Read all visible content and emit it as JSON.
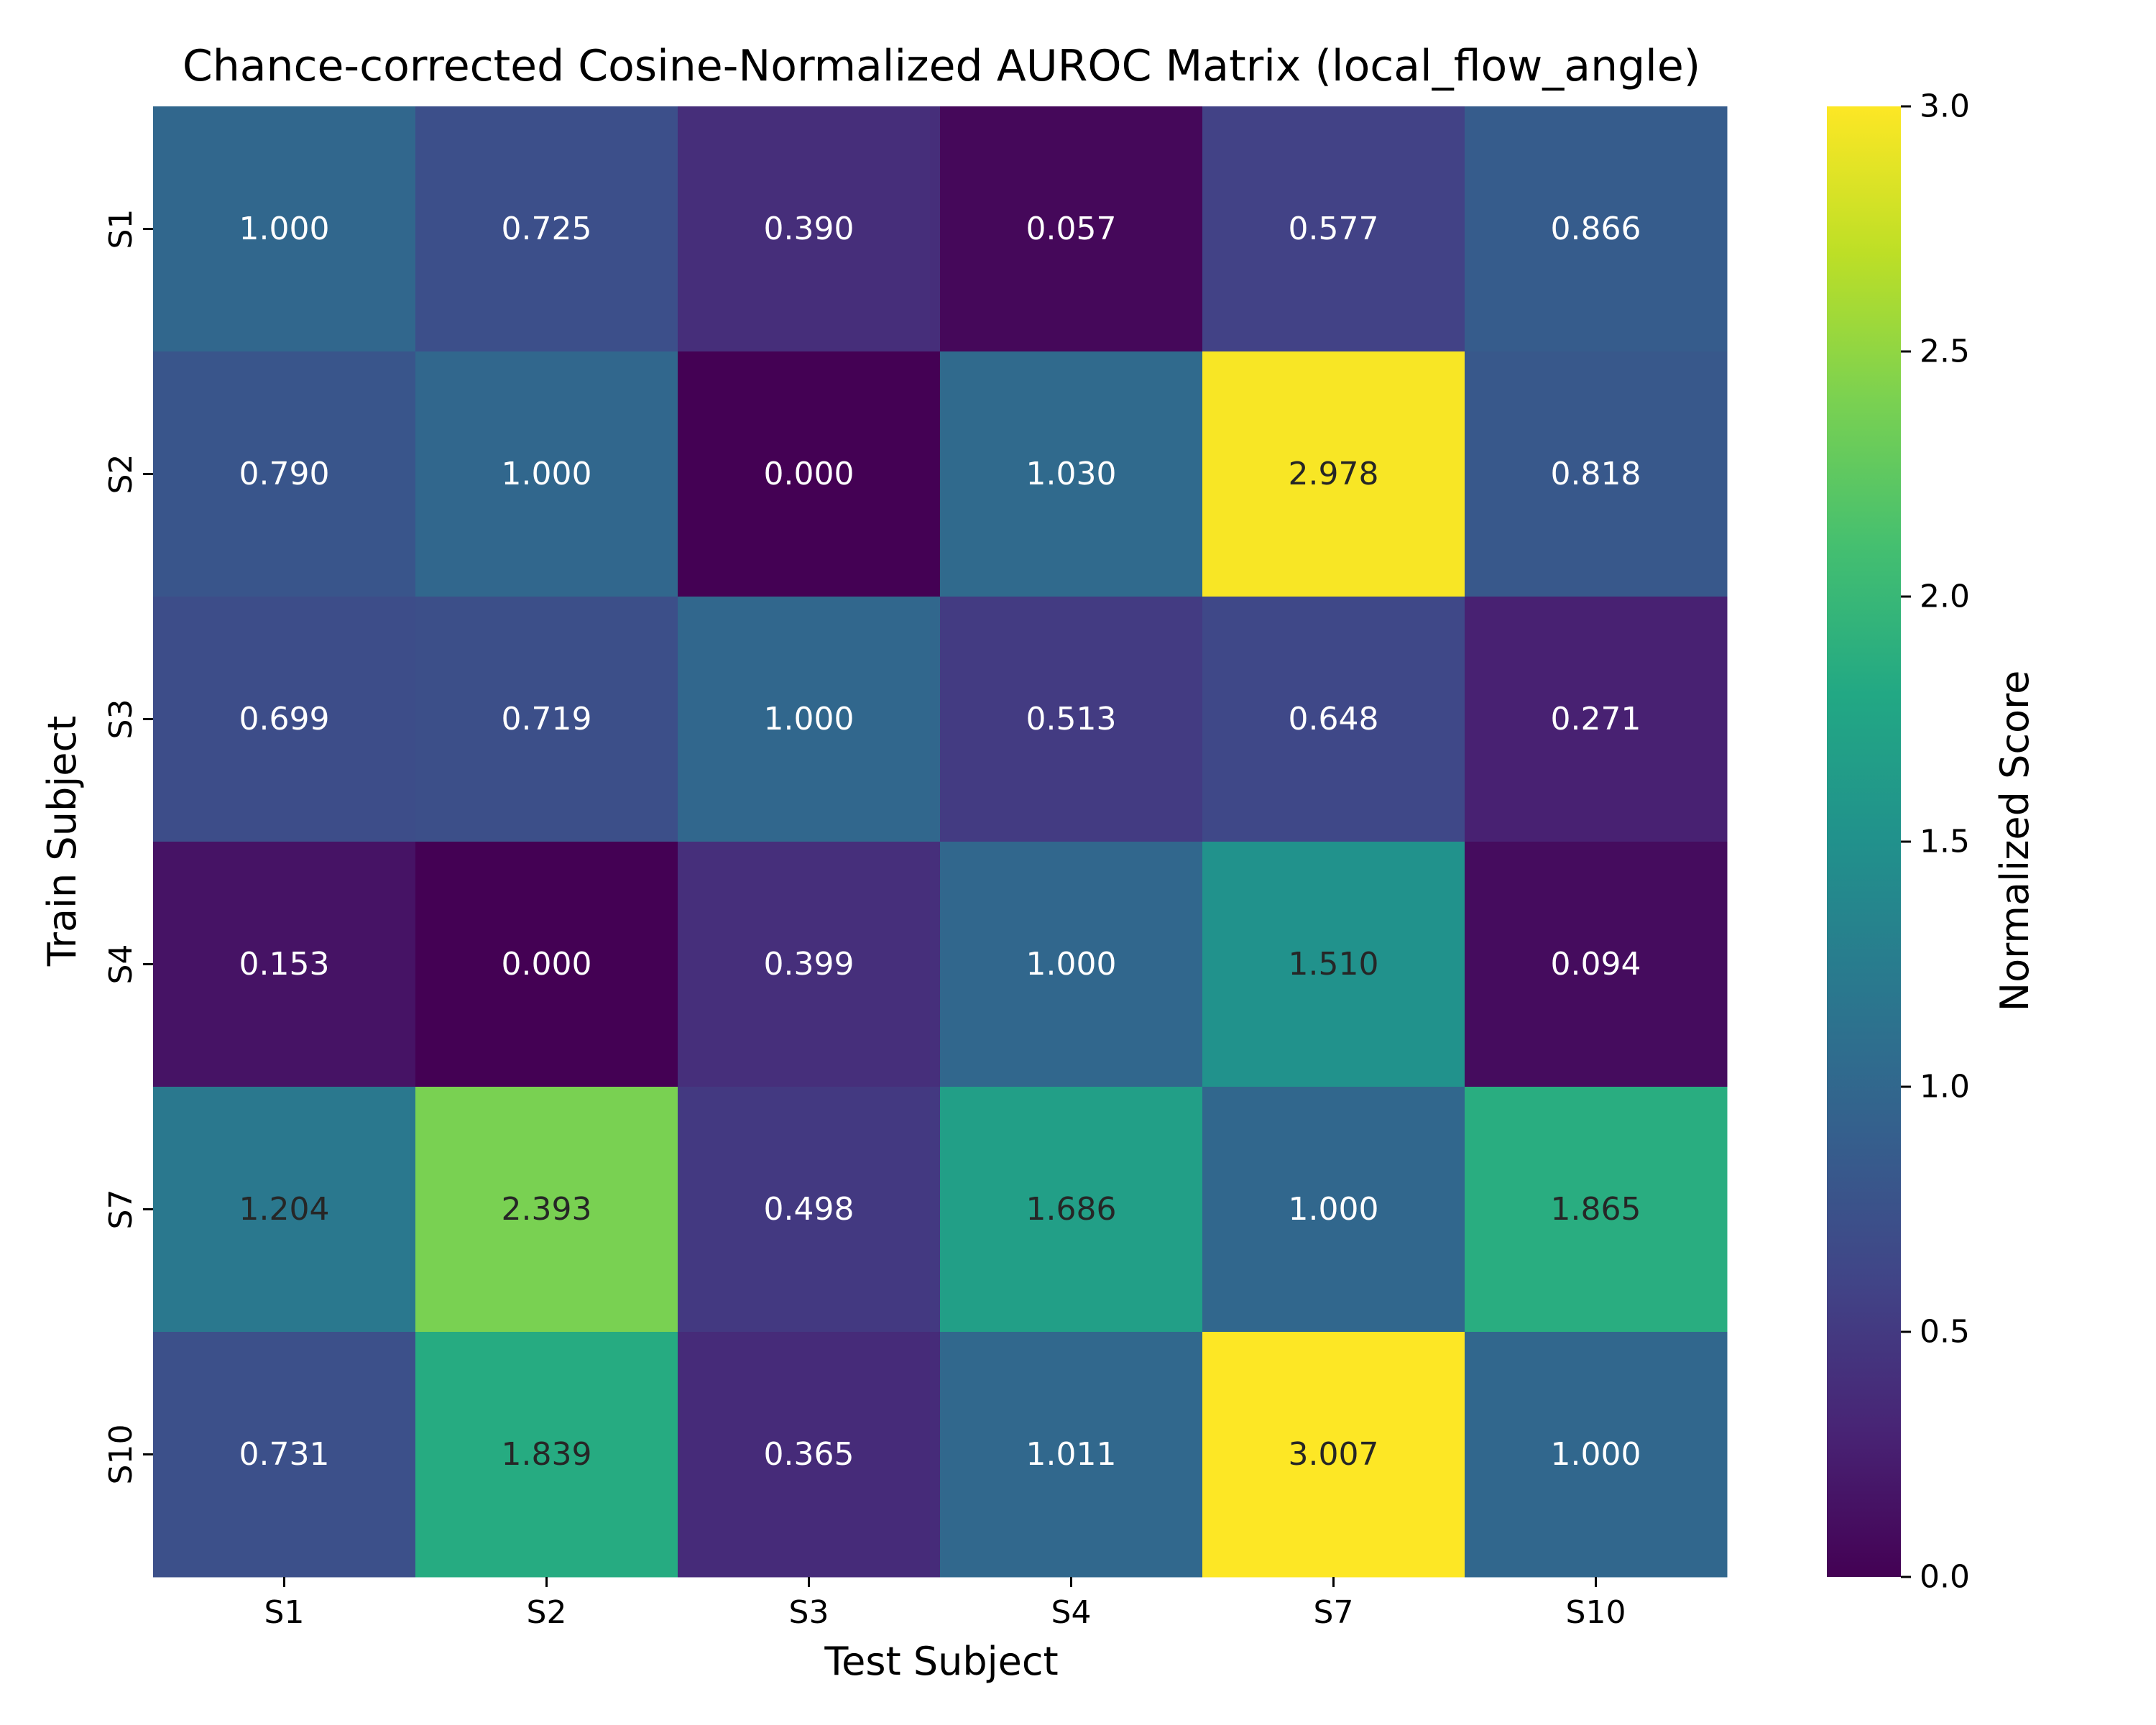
{
  "chart_data": {
    "type": "heatmap",
    "title": "Chance-corrected Cosine-Normalized AUROC Matrix (local_flow_angle)",
    "xlabel": "Test Subject",
    "ylabel": "Train Subject",
    "x_categories": [
      "S1",
      "S2",
      "S3",
      "S4",
      "S7",
      "S10"
    ],
    "y_categories": [
      "S1",
      "S2",
      "S3",
      "S4",
      "S7",
      "S10"
    ],
    "values": [
      [
        1.0,
        0.725,
        0.39,
        0.057,
        0.577,
        0.866
      ],
      [
        0.79,
        1.0,
        0.0,
        1.03,
        2.978,
        0.818
      ],
      [
        0.699,
        0.719,
        1.0,
        0.513,
        0.648,
        0.271
      ],
      [
        0.153,
        0.0,
        0.399,
        1.0,
        1.51,
        0.094
      ],
      [
        1.204,
        2.393,
        0.498,
        1.686,
        1.0,
        1.865
      ],
      [
        0.731,
        1.839,
        0.365,
        1.011,
        3.007,
        1.0
      ]
    ],
    "value_format": "0.000",
    "colormap": "viridis",
    "colorbar": {
      "label": "Normalized Score",
      "range": [
        0,
        3.0
      ],
      "ticks": [
        0.0,
        0.5,
        1.0,
        1.5,
        2.0,
        2.5,
        3.0
      ],
      "tick_labels": [
        "0.0",
        "0.5",
        "1.0",
        "1.5",
        "2.0",
        "2.5",
        "3.0"
      ]
    }
  }
}
